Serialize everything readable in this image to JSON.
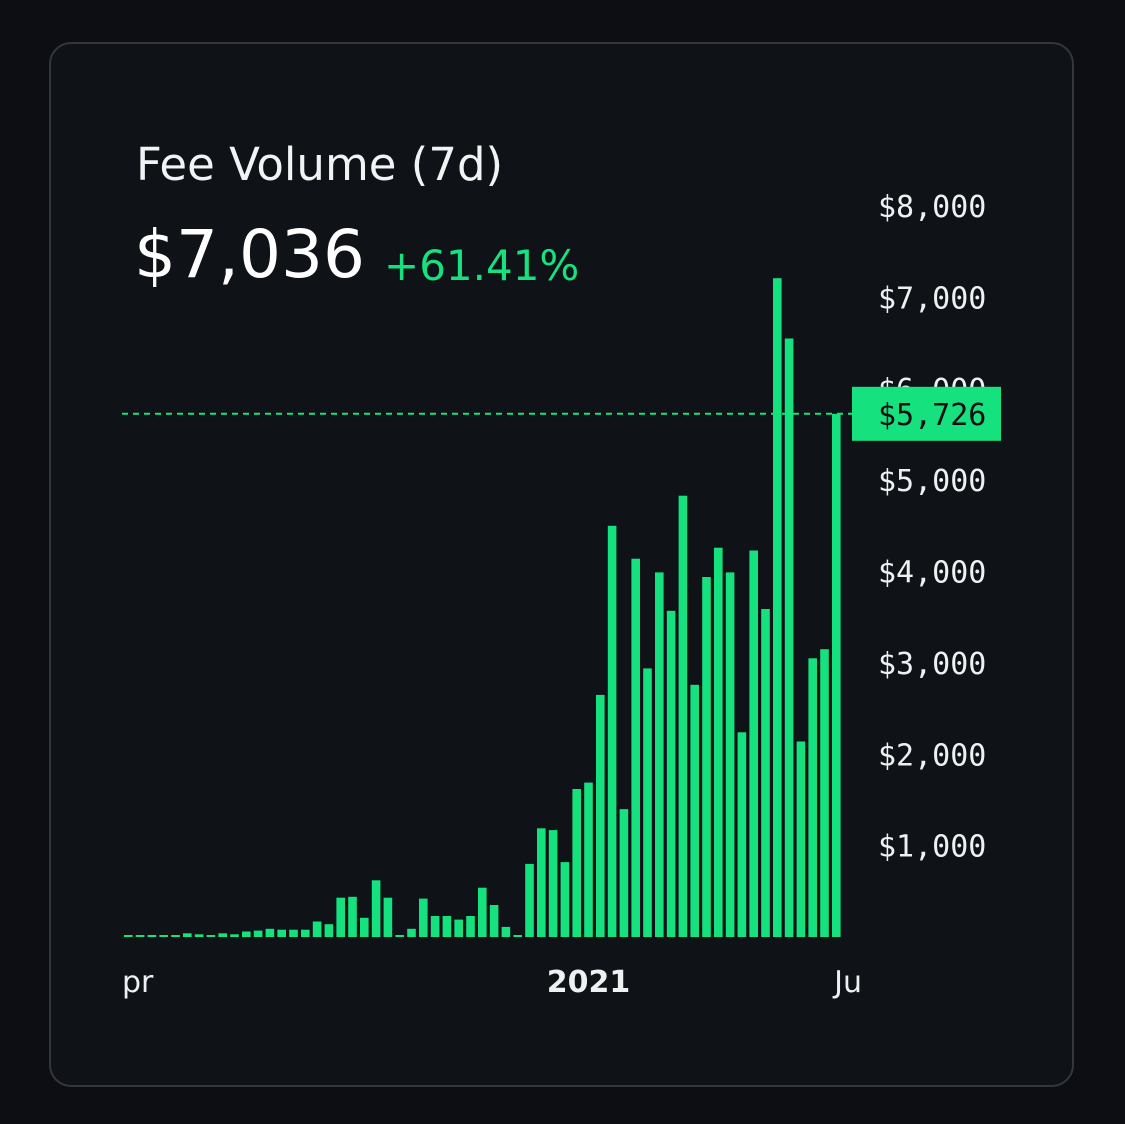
{
  "colors": {
    "accent": "#16e17f",
    "background": "#0c0e13",
    "card": "#0f1217",
    "text": "#f2f3f5"
  },
  "header": {
    "title": "Fee Volume (7d)",
    "value": "$7,036",
    "change": "+61.41%"
  },
  "chart_data": {
    "type": "bar",
    "ylim": [
      0,
      8000
    ],
    "y_ticks": [
      {
        "value": 1000,
        "label": "$1,000"
      },
      {
        "value": 2000,
        "label": "$2,000"
      },
      {
        "value": 3000,
        "label": "$3,000"
      },
      {
        "value": 4000,
        "label": "$4,000"
      },
      {
        "value": 5000,
        "label": "$5,000"
      },
      {
        "value": 6000,
        "label": "$6,000"
      },
      {
        "value": 7000,
        "label": "$7,000"
      },
      {
        "value": 8000,
        "label": "$8,000"
      }
    ],
    "x_ticks": [
      {
        "bar_index": 0,
        "label": "pr"
      },
      {
        "bar_index": 39,
        "label": "2021"
      },
      {
        "bar_index": 61,
        "label": "Ju"
      }
    ],
    "values": [
      20,
      20,
      20,
      20,
      20,
      40,
      30,
      20,
      40,
      30,
      60,
      70,
      90,
      80,
      80,
      80,
      170,
      140,
      430,
      440,
      210,
      620,
      430,
      20,
      90,
      420,
      230,
      230,
      190,
      230,
      540,
      350,
      110,
      20,
      800,
      1190,
      1170,
      820,
      1620,
      1690,
      2650,
      4500,
      1400,
      4140,
      2940,
      3990,
      3570,
      4830,
      2760,
      3940,
      4260,
      3990,
      2240,
      4230,
      3590,
      7210,
      6550,
      2140,
      3050,
      3150,
      5726
    ],
    "last_value": 5726,
    "last_label": "$5,726",
    "grid": false,
    "reference_line": "dashed at last value"
  }
}
